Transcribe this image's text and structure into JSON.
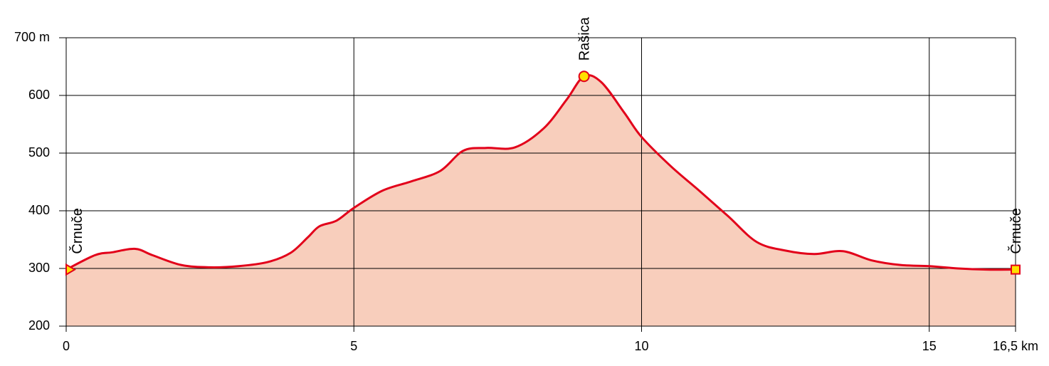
{
  "chart_data": {
    "type": "area",
    "x": [
      0,
      0.5,
      0.8,
      1.2,
      1.5,
      2,
      2.5,
      3,
      3.5,
      3.9,
      4.2,
      4.4,
      4.7,
      5,
      5.5,
      6,
      6.5,
      6.9,
      7.3,
      7.8,
      8.3,
      8.7,
      9,
      9.3,
      9.7,
      10,
      10.5,
      11,
      11.5,
      12,
      12.5,
      13,
      13.5,
      14,
      14.5,
      15,
      15.5,
      16,
      16.5
    ],
    "series": [
      {
        "color": "#e2001a",
        "fill": "#f8cebc",
        "values": [
          298,
          323,
          328,
          334,
          323,
          306,
          302,
          304,
          311,
          327,
          354,
          373,
          383,
          405,
          435,
          451,
          469,
          504,
          509,
          510,
          543,
          593,
          633,
          623,
          570,
          528,
          478,
          435,
          391,
          346,
          331,
          325,
          330,
          314,
          306,
          304,
          300,
          298,
          298
        ]
      }
    ],
    "xlim": [
      0,
      16.5
    ],
    "xticks": [
      0,
      5,
      10,
      15,
      {
        "value": 16.5,
        "label": "16,5 km"
      }
    ],
    "ylim": [
      200,
      700
    ],
    "yticks": [
      200,
      300,
      400,
      500,
      600,
      {
        "value": 700,
        "label": "700 m"
      }
    ],
    "grid": true,
    "waypoints": [
      {
        "label": "Črnuče",
        "x": 0,
        "y": 298,
        "marker": "triangle"
      },
      {
        "label": "Rašica",
        "x": 9,
        "y": 633,
        "marker": "circle"
      },
      {
        "label": "Črnuče",
        "x": 16.5,
        "y": 298,
        "marker": "square"
      }
    ]
  }
}
